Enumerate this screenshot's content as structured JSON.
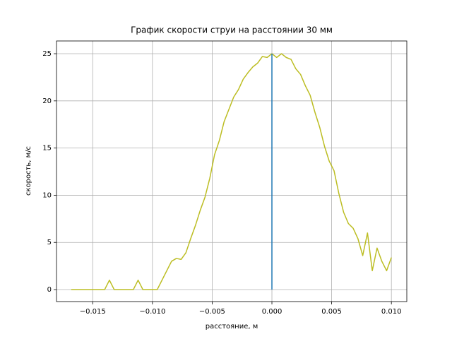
{
  "chart_data": {
    "type": "line",
    "title": "График скорости струи на расстоянии 30 мм",
    "x_label": "расстояние, м",
    "y_label": "скорость, м/с",
    "grid": true,
    "xlim": [
      -0.01803,
      0.01129
    ],
    "ylim": [
      -1.27,
      26.35
    ],
    "xticks": [
      {
        "value": -0.015,
        "label": "−0.015"
      },
      {
        "value": -0.01,
        "label": "−0.010"
      },
      {
        "value": -0.005,
        "label": "−0.005"
      },
      {
        "value": 0,
        "label": "0.000"
      },
      {
        "value": 0.005,
        "label": "0.005"
      },
      {
        "value": 0.01,
        "label": "0.010"
      }
    ],
    "yticks": [
      0,
      5,
      10,
      15,
      20,
      25
    ],
    "series": [
      {
        "color": "#bcbd22",
        "x": [
          -0.0168,
          -0.0164,
          -0.016,
          -0.0156,
          -0.0152,
          -0.0148,
          -0.0144,
          -0.014,
          -0.0136,
          -0.0132,
          -0.0128,
          -0.0124,
          -0.012,
          -0.0116,
          -0.0112,
          -0.0108,
          -0.0104,
          -0.01,
          -0.0096,
          -0.0092,
          -0.0088,
          -0.0084,
          -0.008,
          -0.0076,
          -0.0072,
          -0.0068,
          -0.0064,
          -0.006,
          -0.0056,
          -0.0052,
          -0.0048,
          -0.0044,
          -0.004,
          -0.0036,
          -0.0032,
          -0.0028,
          -0.0024,
          -0.002,
          -0.0016,
          -0.0012,
          -0.0008,
          -0.0004,
          0,
          0.0004,
          0.0008,
          0.0012,
          0.0016,
          0.002,
          0.0024,
          0.0028,
          0.0032,
          0.0036,
          0.004,
          0.0044,
          0.0048,
          0.0052,
          0.0056,
          0.006,
          0.0064,
          0.0068,
          0.0072,
          0.0076,
          0.008,
          0.0084,
          0.0088,
          0.0092,
          0.0096,
          0.01
        ],
        "values": [
          0,
          0,
          0,
          0,
          0,
          0,
          0,
          0,
          1,
          0,
          0,
          0,
          0,
          0,
          1,
          0,
          0,
          0,
          0,
          1,
          2,
          3,
          3.3,
          3.2,
          3.9,
          5.4,
          6.8,
          8.4,
          9.8,
          11.8,
          14.3,
          15.8,
          17.8,
          19.1,
          20.4,
          21.2,
          22.3,
          23.0,
          23.6,
          24.0,
          24.7,
          24.6,
          25.0,
          24.6,
          25.0,
          24.6,
          24.4,
          23.4,
          22.8,
          21.6,
          20.6,
          18.8,
          17.2,
          15.2,
          13.6,
          12.6,
          10.2,
          8.2,
          7.0,
          6.5,
          5.4,
          3.6,
          6.0,
          2.0,
          4.4,
          3.0,
          2.0,
          3.4
        ]
      },
      {
        "color": "#1f77b4",
        "x": [
          0,
          0
        ],
        "values": [
          0,
          25
        ]
      }
    ]
  }
}
